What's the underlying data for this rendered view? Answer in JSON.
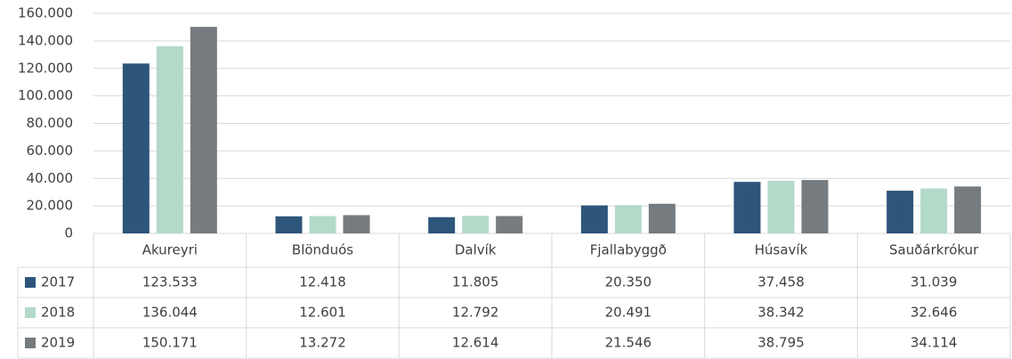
{
  "chart_data": {
    "type": "bar",
    "categories": [
      "Akureyri",
      "Blönduós",
      "Dalvík",
      "Fjallabyggð",
      "Húsavík",
      "Sauðárkrókur"
    ],
    "series": [
      {
        "name": "2017",
        "color": "#2e557a",
        "values": [
          123533,
          12418,
          11805,
          20350,
          37458,
          31039
        ],
        "value_labels": [
          "123.533",
          "12.418",
          "11.805",
          "20.350",
          "37.458",
          "31.039"
        ]
      },
      {
        "name": "2018",
        "color": "#b3d9c8",
        "values": [
          136044,
          12601,
          12792,
          20491,
          38342,
          32646
        ],
        "value_labels": [
          "136.044",
          "12.601",
          "12.792",
          "20.491",
          "38.342",
          "32.646"
        ]
      },
      {
        "name": "2019",
        "color": "#767b7f",
        "values": [
          150171,
          13272,
          12614,
          21546,
          38795,
          34114
        ],
        "value_labels": [
          "150.171",
          "13.272",
          "12.614",
          "21.546",
          "38.795",
          "34.114"
        ]
      }
    ],
    "ylim": [
      0,
      160000
    ],
    "yticks": [
      0,
      {
        "value": 20000,
        "label": "20.000"
      },
      {
        "value": 40000,
        "label": "40.000"
      },
      {
        "value": 60000,
        "label": "60.000"
      },
      {
        "value": 80000,
        "label": "80.000"
      },
      {
        "value": 100000,
        "label": "100.000"
      },
      {
        "value": 120000,
        "label": "120.000"
      },
      {
        "value": 140000,
        "label": "140.000"
      },
      {
        "value": 160000,
        "label": "160.000"
      }
    ],
    "grid": true
  }
}
